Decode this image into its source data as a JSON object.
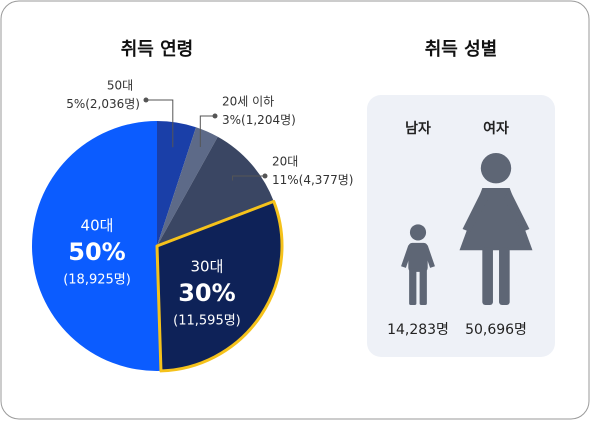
{
  "chart_data": [
    {
      "type": "pie",
      "title": "취득 연령",
      "categories": [
        "50대",
        "20세 이하",
        "20대",
        "30대",
        "40대"
      ],
      "values": [
        5,
        3,
        11,
        30,
        50
      ],
      "value_labels": [
        "5%",
        "3%",
        "11%",
        "30%",
        "50%"
      ],
      "counts": [
        2036,
        1204,
        4377,
        11595,
        18925
      ],
      "count_labels": [
        "(2,036명)",
        "(1,204명)",
        "(4,377명)",
        "(11,595명)",
        "(18,925명)"
      ],
      "colors": [
        "#1a3fa8",
        "#5d6a88",
        "#3a4663",
        "#0e2258",
        "#0b5cff"
      ],
      "highlight": "30대",
      "highlight_color": "#f5c21b"
    },
    {
      "type": "pictogram",
      "title": "취득 성별",
      "categories": [
        "남자",
        "여자"
      ],
      "values": [
        14283,
        50696
      ],
      "value_labels": [
        "14,283명",
        "50,696명"
      ],
      "color": "#5e6675"
    }
  ]
}
